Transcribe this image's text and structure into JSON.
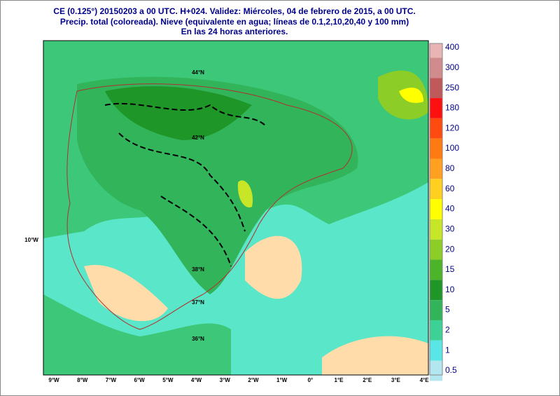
{
  "header": {
    "lines": [
      "CE (0.125°) 20150203 a 00 UTC.  H+024. Validez: Miércoles, 04 de febrero de 2015,  a  00 UTC.",
      "Precip. total (coloreada). Nieve (equivalente en agua; líneas de 0.1,2,10,20,40 y 100 mm)",
      "En las 24 horas anteriores."
    ]
  },
  "colorbar": {
    "labels": [
      "400",
      "300",
      "250",
      "180",
      "120",
      "100",
      "80",
      "60",
      "40",
      "30",
      "20",
      "15",
      "10",
      "5",
      "2",
      "1",
      "0.5"
    ],
    "colors": [
      "#e8b4b4",
      "#d08c8c",
      "#c05a5a",
      "#ff1010",
      "#ff4a10",
      "#ff7a10",
      "#ffa020",
      "#ffd020",
      "#ffff00",
      "#c8e628",
      "#8ccd28",
      "#4cb428",
      "#1e9628",
      "#32b45a",
      "#3cd296",
      "#5ae6e6",
      "#b4e6f0"
    ]
  },
  "x_labels": [
    "9°W",
    "8°W",
    "7°W",
    "6°W",
    "5°W",
    "4°W",
    "3°W",
    "2°W",
    "1°W",
    "0°",
    "1°E",
    "2°E",
    "3°E",
    "4°E"
  ],
  "y_label": "10°W",
  "lat_labels": [
    "44°N",
    "42°N",
    "38°N",
    "37°N",
    "36°N"
  ]
}
